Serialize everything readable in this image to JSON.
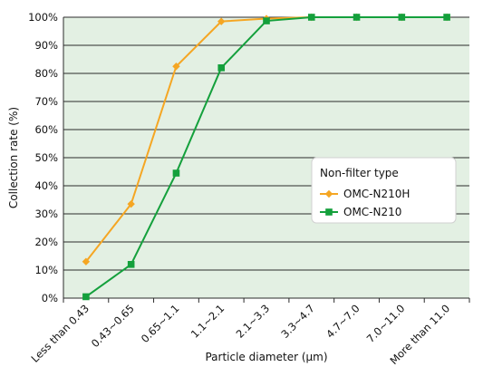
{
  "chart_data": {
    "type": "line",
    "title": "",
    "xlabel": "Particle diameter (μm)",
    "ylabel": "Collection rate (%)",
    "categories": [
      "Less than 0.43",
      "0.43~0.65",
      "0.65~1.1",
      "1.1~2.1",
      "2.1~3.3",
      "3.3~4.7",
      "4.7~7.0",
      "7.0~11.0",
      "More than 11.0"
    ],
    "y_tick_labels": [
      "0%",
      "10%",
      "20%",
      "30%",
      "40%",
      "50%",
      "60%",
      "70%",
      "80%",
      "90%",
      "100%"
    ],
    "ylim": [
      0,
      100
    ],
    "grid": "horizontal",
    "legend_title": "Non-filter type",
    "legend_position": "right-middle",
    "series": [
      {
        "name": "OMC-N210H",
        "values": [
          13,
          33.5,
          82.5,
          98.5,
          99.5,
          100,
          100,
          100,
          100
        ],
        "color": "#f5a623",
        "marker": "diamond"
      },
      {
        "name": "OMC-N210",
        "values": [
          0.5,
          12,
          44.5,
          82,
          98.7,
          100,
          100,
          100,
          100
        ],
        "color": "#14a03c",
        "marker": "square"
      }
    ],
    "plot_background": "#e3f0e3"
  }
}
